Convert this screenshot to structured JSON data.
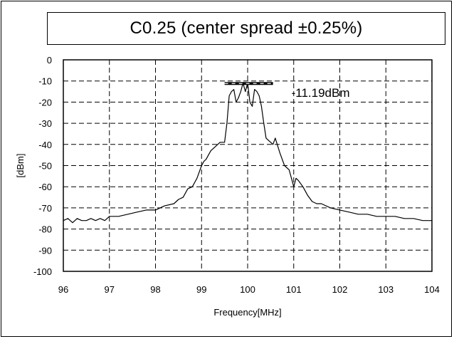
{
  "chart_data": {
    "type": "line",
    "title": "C0.25 (center spread ±0.25%)",
    "xlabel": "Frequency[MHz]",
    "ylabel": "[dBm]",
    "xlim": [
      96,
      104
    ],
    "ylim": [
      -100,
      0
    ],
    "x_ticks": [
      "96",
      "97",
      "98",
      "99",
      "100",
      "101",
      "102",
      "103",
      "104"
    ],
    "y_ticks": [
      "0",
      "-10",
      "-20",
      "-30",
      "-40",
      "-50",
      "-60",
      "-70",
      "-80",
      "-90",
      "-100"
    ],
    "grid": "dashed",
    "annotation": {
      "text": "-11.19dBm",
      "x_start": 99.5,
      "x_end": 100.55,
      "y": -11.19
    },
    "series": [
      {
        "x": [
          96.0,
          96.1,
          96.2,
          96.3,
          96.4,
          96.5,
          96.6,
          96.7,
          96.8,
          96.9,
          97.0,
          97.2,
          97.4,
          97.6,
          97.8,
          98.0,
          98.2,
          98.4,
          98.5,
          98.6,
          98.7,
          98.8,
          98.9,
          99.0,
          99.05,
          99.1,
          99.2,
          99.3,
          99.4,
          99.5,
          99.55,
          99.6,
          99.65,
          99.7,
          99.75,
          99.8,
          99.85,
          99.9,
          99.95,
          100.0,
          100.05,
          100.1,
          100.15,
          100.2,
          100.25,
          100.3,
          100.35,
          100.4,
          100.45,
          100.5,
          100.55,
          100.6,
          100.7,
          100.8,
          100.9,
          101.0,
          101.05,
          101.1,
          101.2,
          101.3,
          101.4,
          101.5,
          101.6,
          101.8,
          102.0,
          102.2,
          102.4,
          102.6,
          102.8,
          103.0,
          103.2,
          103.4,
          103.6,
          103.8,
          104.0
        ],
        "y": [
          -76,
          -75,
          -77,
          -75,
          -76,
          -76,
          -75,
          -76,
          -75,
          -76,
          -74,
          -74,
          -73,
          -72,
          -71,
          -71,
          -69,
          -68,
          -66,
          -65,
          -61,
          -60,
          -56,
          -50,
          -48,
          -47,
          -43,
          -41,
          -39,
          -39,
          -30,
          -17,
          -15,
          -14,
          -20,
          -18,
          -15,
          -11,
          -15,
          -11,
          -20,
          -22,
          -14,
          -15,
          -17,
          -22,
          -30,
          -37,
          -38,
          -39,
          -40,
          -37,
          -44,
          -50,
          -52,
          -60,
          -56,
          -57,
          -60,
          -64,
          -67,
          -68,
          -68,
          -70,
          -71,
          -72,
          -73,
          -73,
          -74,
          -74,
          -74,
          -75,
          -75,
          -76,
          -76
        ]
      }
    ]
  }
}
